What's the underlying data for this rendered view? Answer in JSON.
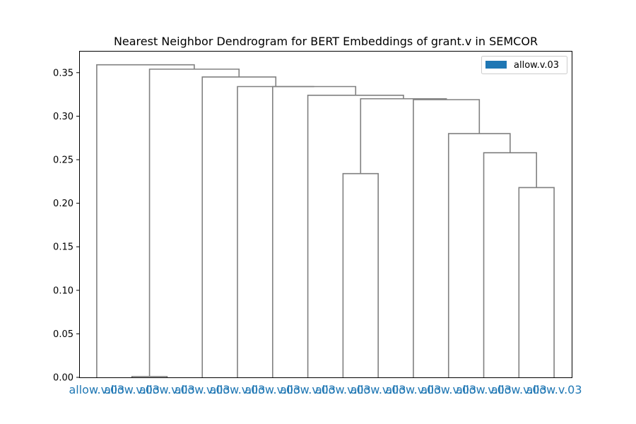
{
  "chart_data": {
    "type": "dendrogram",
    "title": "Nearest Neighbor Dendrogram for BERT Embeddings of grant.v in SEMCOR",
    "xlabel": "",
    "ylabel": "",
    "ylim": [
      0,
      0.375
    ],
    "yticks": [
      "0.00",
      "0.05",
      "0.10",
      "0.15",
      "0.20",
      "0.25",
      "0.30",
      "0.35"
    ],
    "ytick_values": [
      0,
      0.05,
      0.1,
      0.15,
      0.2,
      0.25,
      0.3,
      0.35
    ],
    "leaves": [
      "allow.v.03",
      "allow.v.03",
      "allow.v.03",
      "allow.v.03",
      "allow.v.03",
      "allow.v.03",
      "allow.v.03",
      "allow.v.03",
      "allow.v.03",
      "allow.v.03",
      "allow.v.03",
      "allow.v.03",
      "allow.v.03",
      "allow.v.03"
    ],
    "merges": [
      {
        "left": "leaf:1",
        "right": "leaf:2",
        "height": 0.001
      },
      {
        "left": "leaf:7",
        "right": "leaf:8",
        "height": 0.234
      },
      {
        "left": "leaf:12",
        "right": "leaf:13",
        "height": 0.218
      },
      {
        "left": "leaf:11",
        "right": "node:2",
        "height": 0.258
      },
      {
        "left": "leaf:10",
        "right": "node:3",
        "height": 0.28
      },
      {
        "left": "leaf:9",
        "right": "node:4",
        "height": 0.319
      },
      {
        "left": "node:1",
        "right": "node:5",
        "height": 0.32
      },
      {
        "left": "leaf:6",
        "right": "node:6",
        "height": 0.324
      },
      {
        "left": "leaf:5",
        "right": "node:7",
        "height": 0.334
      },
      {
        "left": "leaf:4",
        "right": "node:8",
        "height": 0.334
      },
      {
        "left": "leaf:3",
        "right": "node:9",
        "height": 0.345
      },
      {
        "left": "node:0",
        "right": "node:10",
        "height": 0.354
      },
      {
        "left": "leaf:0",
        "right": "node:11",
        "height": 0.359
      }
    ],
    "link_color": "#808080",
    "leaf_label_color": "#1f77b4",
    "legend": {
      "placement": "top-right",
      "entries": [
        {
          "label": "allow.v.03",
          "color": "#1f77b4"
        }
      ]
    },
    "grid": false
  }
}
